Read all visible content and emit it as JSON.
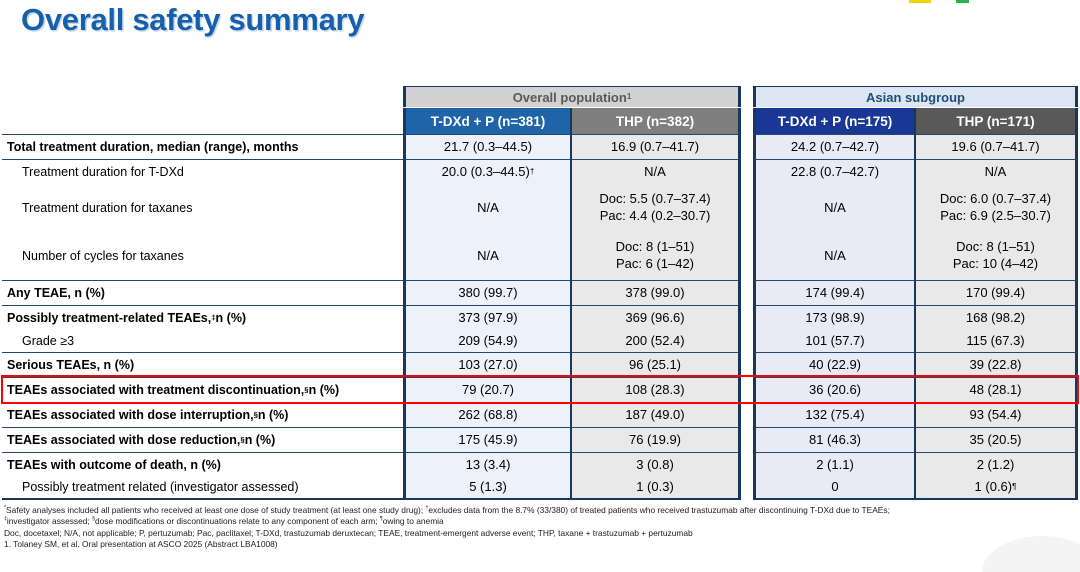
{
  "slide": {
    "title": "Overall safety summary",
    "title_color": "#1660ab"
  },
  "logo_marks": [
    {
      "name": "yellow-mark",
      "color": "#f0d500"
    },
    {
      "name": "green-mark",
      "color": "#2eb14c"
    }
  ],
  "table": {
    "group_headers": [
      {
        "label": "Overall population^1",
        "bg": "#d1d1d1",
        "fg": "#595959"
      },
      {
        "label": "Asian subgroup",
        "bg": "#dce6f2",
        "fg": "#1f4e79"
      }
    ],
    "column_headers": [
      {
        "label": "T-DXd + P (n=381)",
        "bg": "#1f63a8"
      },
      {
        "label": "THP (n=382)",
        "bg": "#7f7f7f"
      },
      {
        "label": "T-DXd + P (n=175)",
        "bg": "#1a3795"
      },
      {
        "label": "THP (n=171)",
        "bg": "#595959"
      }
    ],
    "col_bg": [
      "#edf1f9",
      "#e9e9e9",
      "#e8ebf5",
      "#e9e9e9"
    ],
    "border_color": "#17375d",
    "highlight_color": "#ff0000",
    "groups": [
      {
        "rows": [
          {
            "label": "Total treatment duration, median (range), months",
            "bold": true,
            "cells": [
              "21.7 (0.3–44.5)",
              "16.9 (0.7–41.7)",
              "24.2 (0.7–42.7)",
              "19.6 (0.7–41.7)"
            ]
          }
        ]
      },
      {
        "rows": [
          {
            "label": "Treatment duration for T-DXd",
            "indent": true,
            "cells": [
              "20.0 (0.3–44.5)^†",
              "N/A",
              "22.8 (0.7–42.7)",
              "N/A"
            ]
          },
          {
            "label": "Treatment duration for taxanes",
            "indent": true,
            "cells": [
              "N/A",
              "Doc: 5.5 (0.7–37.4)\nPac: 4.4 (0.2–30.7)",
              "N/A",
              "Doc: 6.0 (0.7–37.4)\nPac: 6.9 (2.5–30.7)"
            ]
          },
          {
            "label": "Number of cycles for taxanes",
            "indent": true,
            "cells": [
              "N/A",
              "Doc: 8 (1–51)\nPac: 6 (1–42)",
              "N/A",
              "Doc: 8 (1–51)\nPac: 10 (4–42)"
            ]
          }
        ]
      },
      {
        "rows": [
          {
            "label": "Any TEAE, n (%)",
            "bold": true,
            "cells": [
              "380 (99.7)",
              "378 (99.0)",
              "174 (99.4)",
              "170 (99.4)"
            ]
          }
        ]
      },
      {
        "rows": [
          {
            "label": "Possibly treatment-related TEAEs,^‡ n (%)",
            "bold": true,
            "cells": [
              "373 (97.9)",
              "369 (96.6)",
              "173 (98.9)",
              "168 (98.2)"
            ]
          },
          {
            "label": "Grade ≥3",
            "indent": true,
            "cells": [
              "209 (54.9)",
              "200 (52.4)",
              "101 (57.7)",
              "115 (67.3)"
            ]
          }
        ]
      },
      {
        "rows": [
          {
            "label": "Serious TEAEs, n (%)",
            "bold": true,
            "cells": [
              "103 (27.0)",
              "96 (25.1)",
              "40 (22.9)",
              "39 (22.8)"
            ]
          }
        ]
      },
      {
        "highlight": true,
        "rows": [
          {
            "label": "TEAEs associated with treatment discontinuation,^§ n (%)",
            "bold": true,
            "cells": [
              "79 (20.7)",
              "108 (28.3)",
              "36 (20.6)",
              "48 (28.1)"
            ]
          }
        ]
      },
      {
        "rows": [
          {
            "label": "TEAEs associated with dose interruption,^§ n (%)",
            "bold": true,
            "cells": [
              "262 (68.8)",
              "187 (49.0)",
              "132 (75.4)",
              "93 (54.4)"
            ]
          }
        ]
      },
      {
        "rows": [
          {
            "label": "TEAEs associated with dose reduction,^§ n (%)",
            "bold": true,
            "cells": [
              "175 (45.9)",
              "76 (19.9)",
              "81 (46.3)",
              "35 (20.5)"
            ]
          }
        ]
      },
      {
        "rows": [
          {
            "label": "TEAEs with outcome of death, n (%)",
            "bold": true,
            "cells": [
              "13 (3.4)",
              "3 (0.8)",
              "2 (1.1)",
              "2 (1.2)"
            ]
          },
          {
            "label": "Possibly treatment related (investigator assessed)",
            "indent": true,
            "cells": [
              "5 (1.3)",
              "1 (0.3)",
              "0",
              "1 (0.6)^¶"
            ]
          }
        ]
      }
    ]
  },
  "footnotes": [
    "^*Safety analyses included all patients who received at least one dose of study treatment (at least one study drug); ^†excludes data from the 8.7% (33/380) of treated patients who received trastuzumab after discontinuing T-DXd due to TEAEs;",
    "^‡investigator assessed; ^§dose modifications or discontinuations relate to any component of each arm; ^¶owing to anemia",
    "Doc, docetaxel; N/A, not applicable; P, pertuzumab; Pac, paclitaxel; T-DXd, trastuzumab deruxtecan; TEAE, treatment-emergent adverse event; THP, taxane + trastuzumab + pertuzumab",
    "1. Tolaney SM, et al. Oral presentation at ASCO 2025 (Abstract LBA1008)"
  ]
}
